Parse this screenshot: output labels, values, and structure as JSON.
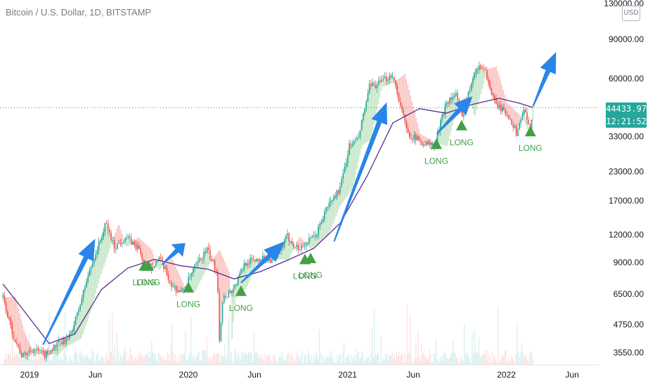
{
  "title": "Bitcoin / U.S. Dollar, 1D, BITSTAMP",
  "currency_badge": "USD",
  "current_price": "44433.97",
  "countdown": "12:21:52",
  "colors": {
    "up": "#26a69a",
    "down": "#ef5350",
    "ribbon_up": "#4caf50",
    "ribbon_down": "#f44336",
    "ma": "#5b2c8e",
    "arrow": "#2a85e8",
    "signal": "#43a047",
    "price_line": "#26a69a"
  },
  "chart_data": {
    "type": "line",
    "title": "Bitcoin / U.S. Dollar, 1D, BITSTAMP",
    "scale": "log",
    "ylim": [
      3000,
      130000
    ],
    "y_ticks": [
      "130000.00",
      "90000.00",
      "60000.00",
      "33000.00",
      "23000.00",
      "17000.00",
      "12000.00",
      "9000.00",
      "6500.00",
      "4750.00",
      "3550.00"
    ],
    "x_ticks": [
      "2019",
      "Jun",
      "2020",
      "Jun",
      "2021",
      "Jun",
      "2022",
      "Jun"
    ],
    "price_path": [
      [
        "2018-11-01",
        6300
      ],
      [
        "2018-11-20",
        4500
      ],
      [
        "2018-12-15",
        3400
      ],
      [
        "2019-01-10",
        3700
      ],
      [
        "2019-02-05",
        3450
      ],
      [
        "2019-03-01",
        3800
      ],
      [
        "2019-04-01",
        4100
      ],
      [
        "2019-04-20",
        5200
      ],
      [
        "2019-05-15",
        7800
      ],
      [
        "2019-06-26",
        13500
      ],
      [
        "2019-07-15",
        10500
      ],
      [
        "2019-08-10",
        11700
      ],
      [
        "2019-09-10",
        10300
      ],
      [
        "2019-09-26",
        8300
      ],
      [
        "2019-10-27",
        9400
      ],
      [
        "2019-11-25",
        7000
      ],
      [
        "2019-12-18",
        6600
      ],
      [
        "2020-01-15",
        8500
      ],
      [
        "2020-02-13",
        10300
      ],
      [
        "2020-03-08",
        8000
      ],
      [
        "2020-03-12",
        4000
      ],
      [
        "2020-03-20",
        6200
      ],
      [
        "2020-04-15",
        6900
      ],
      [
        "2020-05-10",
        9000
      ],
      [
        "2020-06-15",
        9400
      ],
      [
        "2020-07-20",
        9200
      ],
      [
        "2020-08-15",
        11800
      ],
      [
        "2020-09-10",
        10300
      ],
      [
        "2020-10-20",
        11900
      ],
      [
        "2020-11-15",
        16000
      ],
      [
        "2020-12-15",
        19400
      ],
      [
        "2021-01-05",
        30000
      ],
      [
        "2021-01-25",
        32000
      ],
      [
        "2021-02-20",
        55000
      ],
      [
        "2021-03-15",
        57000
      ],
      [
        "2021-04-14",
        63000
      ],
      [
        "2021-05-19",
        34000
      ],
      [
        "2021-06-22",
        31000
      ],
      [
        "2021-07-20",
        29900
      ],
      [
        "2021-08-15",
        47000
      ],
      [
        "2021-09-07",
        51000
      ],
      [
        "2021-09-21",
        40000
      ],
      [
        "2021-10-20",
        66000
      ],
      [
        "2021-11-10",
        68000
      ],
      [
        "2021-12-04",
        47000
      ],
      [
        "2022-01-10",
        40000
      ],
      [
        "2022-01-24",
        34000
      ],
      [
        "2022-02-10",
        44000
      ],
      [
        "2022-02-24",
        35000
      ],
      [
        "2022-03-03",
        44433.97
      ]
    ],
    "moving_average": [
      [
        "2018-11-01",
        7200
      ],
      [
        "2018-12-15",
        5600
      ],
      [
        "2019-02-15",
        3900
      ],
      [
        "2019-04-15",
        4300
      ],
      [
        "2019-06-15",
        6800
      ],
      [
        "2019-08-15",
        8500
      ],
      [
        "2019-10-15",
        9300
      ],
      [
        "2019-12-15",
        8700
      ],
      [
        "2020-02-15",
        8400
      ],
      [
        "2020-04-15",
        7600
      ],
      [
        "2020-06-15",
        8200
      ],
      [
        "2020-08-15",
        9200
      ],
      [
        "2020-10-15",
        10400
      ],
      [
        "2020-12-15",
        13500
      ],
      [
        "2021-02-15",
        22000
      ],
      [
        "2021-04-15",
        38000
      ],
      [
        "2021-06-15",
        44000
      ],
      [
        "2021-08-15",
        42000
      ],
      [
        "2021-10-15",
        46000
      ],
      [
        "2021-12-15",
        49000
      ],
      [
        "2022-02-01",
        46500
      ],
      [
        "2022-03-03",
        44500
      ]
    ],
    "signals": [
      {
        "label": "LONG",
        "date": "2019-09-22",
        "price": 8700
      },
      {
        "label": "LONG",
        "date": "2019-10-01",
        "price": 8700
      },
      {
        "label": "LONG",
        "date": "2020-01-01",
        "price": 6950
      },
      {
        "label": "LONG",
        "date": "2020-05-01",
        "price": 6700
      },
      {
        "label": "LONG",
        "date": "2020-09-25",
        "price": 9300
      },
      {
        "label": "LONG",
        "date": "2020-10-08",
        "price": 9400
      },
      {
        "label": "LONG",
        "date": "2021-07-24",
        "price": 30500
      },
      {
        "label": "LONG",
        "date": "2021-09-20",
        "price": 37000
      },
      {
        "label": "LONG",
        "date": "2022-02-25",
        "price": 34800
      }
    ],
    "arrows": [
      {
        "from": [
          "2019-02-01",
          3850
        ],
        "to": [
          "2019-06-01",
          11500
        ]
      },
      {
        "from": [
          "2019-11-01",
          8800
        ],
        "to": [
          "2019-12-25",
          11000
        ]
      },
      {
        "from": [
          "2020-05-01",
          7300
        ],
        "to": [
          "2020-08-10",
          11200
        ]
      },
      {
        "from": [
          "2020-12-01",
          11200
        ],
        "to": [
          "2021-04-01",
          47000
        ]
      },
      {
        "from": [
          "2021-07-25",
          34000
        ],
        "to": [
          "2021-10-15",
          50000
        ]
      },
      {
        "from": [
          "2022-03-03",
          45000
        ],
        "to": [
          "2022-04-25",
          79000
        ]
      }
    ],
    "current_price": 44433.97
  }
}
